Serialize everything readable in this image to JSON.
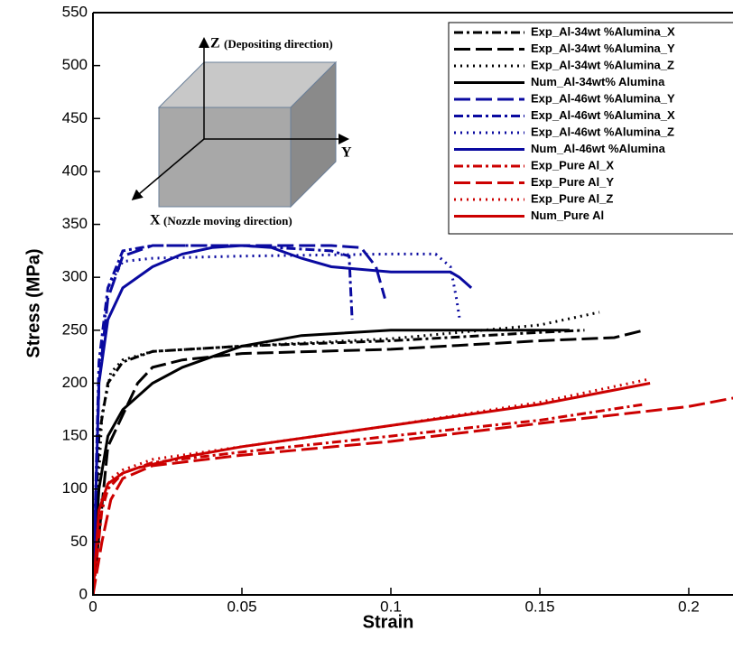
{
  "chart_data": {
    "type": "line",
    "xlabel": "Strain",
    "ylabel": "Stress (MPa)",
    "xlim": [
      0,
      0.215
    ],
    "ylim": [
      0,
      550
    ],
    "xticks": [
      0,
      0.05,
      0.1,
      0.15,
      0.2
    ],
    "yticks": [
      0,
      50,
      100,
      150,
      200,
      250,
      300,
      350,
      400,
      450,
      500,
      550
    ],
    "legend": "top-right",
    "inset": {
      "z_label": "Z",
      "z_note": "(Depositing direction)",
      "y_label": "Y",
      "x_label": "X",
      "x_note": "(Nozzle moving direction)"
    },
    "series": [
      {
        "name": "Exp_Al-34wt %Alumina_X",
        "color": "#000000",
        "dash": "dashdot",
        "x": [
          0,
          0.002,
          0.005,
          0.01,
          0.02,
          0.05,
          0.1,
          0.15,
          0.165
        ],
        "values": [
          0,
          150,
          200,
          220,
          230,
          235,
          240,
          248,
          250
        ]
      },
      {
        "name": "Exp_Al-34wt %Alumina_Y",
        "color": "#000000",
        "dash": "longdash",
        "x": [
          0,
          0.005,
          0.01,
          0.015,
          0.02,
          0.03,
          0.05,
          0.1,
          0.15,
          0.175,
          0.185
        ],
        "values": [
          0,
          140,
          170,
          200,
          215,
          222,
          228,
          232,
          240,
          243,
          250
        ]
      },
      {
        "name": "Exp_Al-34wt %Alumina_Z",
        "color": "#000000",
        "dash": "dot",
        "x": [
          0,
          0.003,
          0.006,
          0.01,
          0.02,
          0.05,
          0.1,
          0.15,
          0.17
        ],
        "values": [
          0,
          170,
          210,
          222,
          230,
          235,
          242,
          255,
          267
        ]
      },
      {
        "name": "Num_Al-34wt% Alumina",
        "color": "#000000",
        "dash": "solid",
        "x": [
          0,
          0.002,
          0.005,
          0.01,
          0.02,
          0.03,
          0.05,
          0.07,
          0.1,
          0.13,
          0.16
        ],
        "values": [
          0,
          100,
          150,
          175,
          200,
          215,
          235,
          245,
          250,
          250,
          250
        ]
      },
      {
        "name": "Exp_Al-46wt %Alumina_Y",
        "color": "#0a0aa0",
        "dash": "longdash",
        "x": [
          0,
          0.002,
          0.005,
          0.01,
          0.02,
          0.05,
          0.08,
          0.09,
          0.095,
          0.097,
          0.098
        ],
        "values": [
          0,
          200,
          280,
          320,
          330,
          330,
          330,
          328,
          310,
          290,
          280
        ]
      },
      {
        "name": "Exp_Al-46wt %Alumina_X",
        "color": "#0a0aa0",
        "dash": "dashdot",
        "x": [
          0,
          0.002,
          0.005,
          0.01,
          0.02,
          0.05,
          0.08,
          0.086,
          0.0865,
          0.087
        ],
        "values": [
          0,
          220,
          290,
          325,
          330,
          330,
          325,
          320,
          290,
          260
        ]
      },
      {
        "name": "Exp_Al-46wt %Alumina_Z",
        "color": "#0a0aa0",
        "dash": "dot",
        "x": [
          0,
          0.002,
          0.005,
          0.01,
          0.02,
          0.05,
          0.1,
          0.115,
          0.12,
          0.122,
          0.123
        ],
        "values": [
          0,
          200,
          290,
          315,
          318,
          320,
          322,
          322,
          310,
          280,
          262
        ]
      },
      {
        "name": "Num_Al-46wt %Alumina",
        "color": "#0a0aa0",
        "dash": "solid",
        "x": [
          0,
          0.002,
          0.005,
          0.01,
          0.02,
          0.03,
          0.04,
          0.05,
          0.06,
          0.07,
          0.08,
          0.1,
          0.12,
          0.123,
          0.125,
          0.127
        ],
        "values": [
          0,
          200,
          260,
          290,
          310,
          322,
          328,
          330,
          328,
          318,
          310,
          305,
          305,
          300,
          295,
          290
        ]
      },
      {
        "name": "Exp_Pure Al_X",
        "color": "#cc0000",
        "dash": "dashdot",
        "x": [
          0,
          0.003,
          0.005,
          0.01,
          0.02,
          0.05,
          0.1,
          0.15,
          0.185
        ],
        "values": [
          0,
          80,
          100,
          115,
          125,
          135,
          150,
          165,
          180
        ]
      },
      {
        "name": "Exp_Pure Al_Y",
        "color": "#cc0000",
        "dash": "longdash",
        "x": [
          0,
          0.003,
          0.006,
          0.01,
          0.02,
          0.05,
          0.1,
          0.15,
          0.2,
          0.215
        ],
        "values": [
          0,
          50,
          90,
          110,
          122,
          132,
          145,
          162,
          178,
          186
        ]
      },
      {
        "name": "Exp_Pure Al_Z",
        "color": "#cc0000",
        "dash": "dot",
        "x": [
          0,
          0.003,
          0.006,
          0.01,
          0.02,
          0.05,
          0.1,
          0.15,
          0.187
        ],
        "values": [
          0,
          90,
          110,
          118,
          128,
          140,
          160,
          182,
          204
        ]
      },
      {
        "name": "Num_Pure Al",
        "color": "#cc0000",
        "dash": "solid",
        "x": [
          0,
          0.002,
          0.005,
          0.01,
          0.015,
          0.03,
          0.05,
          0.1,
          0.15,
          0.187
        ],
        "values": [
          0,
          80,
          105,
          115,
          120,
          130,
          140,
          160,
          180,
          200
        ]
      }
    ]
  }
}
